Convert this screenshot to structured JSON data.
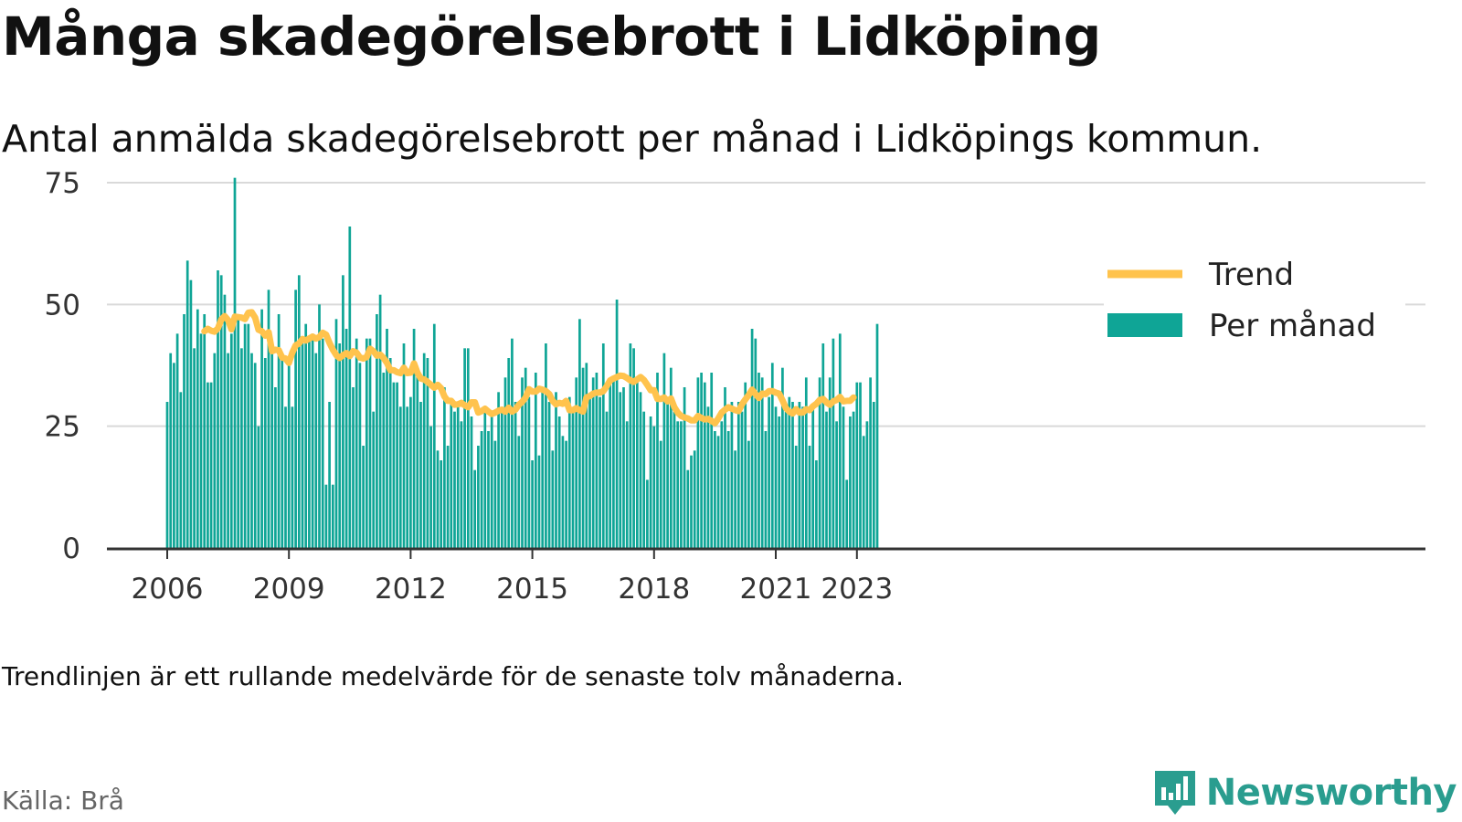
{
  "title": "Många skadegörelsebrott i Lidköping",
  "subtitle": "Antal anmälda skadegörelsebrott per månad i Lidköpings kommun.",
  "footnote": "Trendlinjen är ett rullande medelvärde för de senaste tolv månaderna.",
  "source": "Källa: Brå",
  "brand": "Newsworthy",
  "colors": {
    "bars": "#0fa596",
    "trend": "#ffc34d",
    "grid": "#d9d9d9",
    "axis": "#333333",
    "brand": "#2a9d8f"
  },
  "chart_data": {
    "type": "bar",
    "ylim": [
      0,
      75
    ],
    "yticks": [
      0,
      25,
      50,
      75
    ],
    "xticks": [
      {
        "label": "2006",
        "index": 0
      },
      {
        "label": "2009",
        "index": 36
      },
      {
        "label": "2012",
        "index": 72
      },
      {
        "label": "2015",
        "index": 108
      },
      {
        "label": "2018",
        "index": 144
      },
      {
        "label": "2021",
        "index": 180
      },
      {
        "label": "2023",
        "index": 204
      }
    ],
    "start": "2006-01",
    "end": "2023-05",
    "legend_position": "top-right",
    "series": [
      {
        "name": "Per månad",
        "type": "bar",
        "values": [
          30,
          40,
          38,
          44,
          32,
          48,
          59,
          55,
          41,
          49,
          44,
          48,
          34,
          34,
          40,
          57,
          56,
          52,
          40,
          44,
          76,
          47,
          41,
          46,
          46,
          40,
          38,
          25,
          49,
          39,
          53,
          40,
          33,
          48,
          39,
          29,
          39,
          29,
          53,
          56,
          42,
          46,
          43,
          44,
          40,
          50,
          43,
          13,
          30,
          13,
          47,
          42,
          56,
          45,
          66,
          33,
          43,
          38,
          21,
          43,
          43,
          28,
          48,
          52,
          36,
          45,
          39,
          34,
          34,
          29,
          42,
          29,
          31,
          45,
          37,
          30,
          40,
          39,
          25,
          46,
          20,
          18,
          33,
          21,
          30,
          28,
          30,
          26,
          41,
          41,
          27,
          16,
          21,
          24,
          29,
          24,
          27,
          22,
          32,
          28,
          35,
          39,
          43,
          30,
          23,
          35,
          37,
          31,
          18,
          36,
          19,
          32,
          42,
          30,
          20,
          32,
          27,
          23,
          22,
          31,
          28,
          35,
          47,
          37,
          38,
          31,
          35,
          36,
          31,
          42,
          28,
          34,
          35,
          51,
          32,
          33,
          26,
          42,
          41,
          35,
          32,
          28,
          14,
          27,
          25,
          36,
          22,
          40,
          31,
          37,
          28,
          26,
          26,
          33,
          16,
          19,
          20,
          35,
          36,
          34,
          29,
          36,
          24,
          23,
          26,
          33,
          24,
          30,
          20,
          30,
          28,
          34,
          22,
          45,
          43,
          36,
          35,
          24,
          31,
          38,
          29,
          27,
          37,
          28,
          31,
          30,
          21,
          30,
          29,
          35,
          21,
          29,
          18,
          35,
          42,
          28,
          35,
          43,
          26,
          44,
          29,
          14,
          27,
          28,
          34,
          34,
          23,
          26,
          35,
          30,
          46
        ]
      },
      {
        "name": "Trend",
        "type": "line",
        "start_index": 11,
        "values": [
          44.5,
          45.0,
          44.6,
          44.4,
          45.1,
          46.9,
          47.6,
          46.8,
          44.9,
          47.5,
          47.4,
          47.3,
          47.0,
          48.3,
          48.4,
          47.3,
          44.8,
          44.5,
          43.6,
          44.3,
          40.4,
          40.7,
          40.6,
          39.1,
          38.9,
          38.0,
          40.1,
          41.6,
          42.0,
          42.9,
          42.6,
          43.0,
          43.4,
          43.0,
          43.3,
          44.2,
          43.8,
          42.1,
          40.7,
          39.6,
          39.0,
          39.6,
          40.0,
          39.4,
          40.4,
          40.1,
          39.1,
          38.9,
          39.2,
          40.9,
          40.4,
          39.5,
          39.7,
          39.0,
          38.0,
          36.5,
          36.5,
          36.1,
          35.9,
          37.0,
          35.9,
          36.0,
          37.9,
          36.0,
          34.8,
          34.6,
          34.1,
          33.5,
          32.9,
          33.5,
          32.8,
          31.1,
          30.2,
          30.2,
          29.4,
          29.5,
          29.8,
          29.3,
          28.9,
          29.9,
          29.9,
          27.8,
          28.1,
          28.6,
          28.0,
          27.5,
          27.8,
          28.2,
          28.4,
          28.0,
          28.8,
          28.0,
          28.4,
          29.4,
          30.0,
          30.9,
          32.6,
          32.1,
          32.1,
          32.7,
          32.5,
          32.2,
          31.6,
          30.2,
          29.5,
          29.8,
          29.6,
          30.2,
          28.3,
          28.3,
          28.7,
          28.3,
          28.0,
          30.9,
          31.2,
          31.7,
          31.9,
          31.9,
          32.2,
          33.2,
          34.4,
          34.8,
          35.1,
          35.4,
          35.3,
          34.9,
          34.4,
          34.1,
          34.6,
          35.1,
          34.5,
          33.5,
          32.4,
          32.4,
          30.6,
          30.6,
          30.9,
          30.1,
          30.7,
          28.9,
          27.8,
          27.1,
          26.8,
          26.6,
          26.2,
          26.2,
          27.1,
          26.7,
          26.4,
          26.5,
          26.1,
          25.6,
          26.6,
          27.8,
          28.4,
          28.9,
          28.6,
          28.3,
          28.1,
          29.5,
          30.5,
          31.4,
          32.5,
          31.6,
          30.8,
          31.7,
          31.6,
          32.2,
          32.2,
          31.9,
          31.7,
          30.3,
          28.7,
          28.0,
          27.6,
          28.5,
          27.8,
          27.8,
          28.5,
          28.3,
          29.1,
          29.6,
          30.4,
          30.6,
          29.9,
          29.4,
          30.1,
          30.4,
          31.0,
          30.1,
          30.2,
          30.2,
          30.9
        ]
      }
    ]
  }
}
